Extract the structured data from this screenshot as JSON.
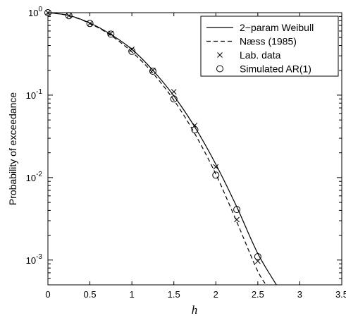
{
  "chart_data": {
    "type": "line",
    "title": "",
    "xlabel": "h",
    "ylabel": "Probability of exceedance",
    "xlim": [
      0,
      3.5
    ],
    "ylim": [
      0.0005,
      1
    ],
    "yscale": "log",
    "grid": false,
    "legend_position": "top-right",
    "x_ticks": [
      "0",
      "0.5",
      "1",
      "1.5",
      "2",
      "2.5",
      "3",
      "3.5"
    ],
    "y_ticks": [
      {
        "base": "10",
        "exp": "0",
        "value": 1
      },
      {
        "base": "10",
        "exp": "-1",
        "value": 0.1
      },
      {
        "base": "10",
        "exp": "-2",
        "value": 0.01
      },
      {
        "base": "10",
        "exp": "-3",
        "value": 0.001
      }
    ],
    "series": [
      {
        "name": "2−param Weibull",
        "style": "solid",
        "x": [
          0,
          0.25,
          0.5,
          0.75,
          1.0,
          1.25,
          1.5,
          1.75,
          2.0,
          2.25,
          2.5,
          2.75
        ],
        "y": [
          1.0,
          0.925,
          0.75,
          0.545,
          0.36,
          0.2,
          0.098,
          0.041,
          0.0145,
          0.0044,
          0.0012,
          0.00045
        ]
      },
      {
        "name": "Næss (1985)",
        "style": "dashed",
        "x": [
          0,
          0.25,
          0.5,
          0.75,
          1.0,
          1.25,
          1.5,
          1.75,
          2.0,
          2.25,
          2.5,
          2.65
        ],
        "y": [
          1.0,
          0.92,
          0.74,
          0.53,
          0.335,
          0.185,
          0.087,
          0.034,
          0.011,
          0.0029,
          0.00073,
          0.00043
        ]
      },
      {
        "name": "Lab. data",
        "marker": "x",
        "x": [
          0,
          0.25,
          0.5,
          0.75,
          1.0,
          1.25,
          1.5,
          1.75,
          2.0,
          2.25,
          2.5
        ],
        "y": [
          1.0,
          0.92,
          0.74,
          0.56,
          0.36,
          0.2,
          0.11,
          0.043,
          0.0135,
          0.0031,
          0.00097
        ]
      },
      {
        "name": "Simulated AR(1)",
        "marker": "o",
        "x": [
          0,
          0.25,
          0.5,
          0.75,
          1.0,
          1.25,
          1.5,
          1.75,
          2.0,
          2.25,
          2.5
        ],
        "y": [
          1.0,
          0.92,
          0.74,
          0.55,
          0.34,
          0.195,
          0.09,
          0.038,
          0.0107,
          0.0041,
          0.0011
        ]
      }
    ]
  }
}
